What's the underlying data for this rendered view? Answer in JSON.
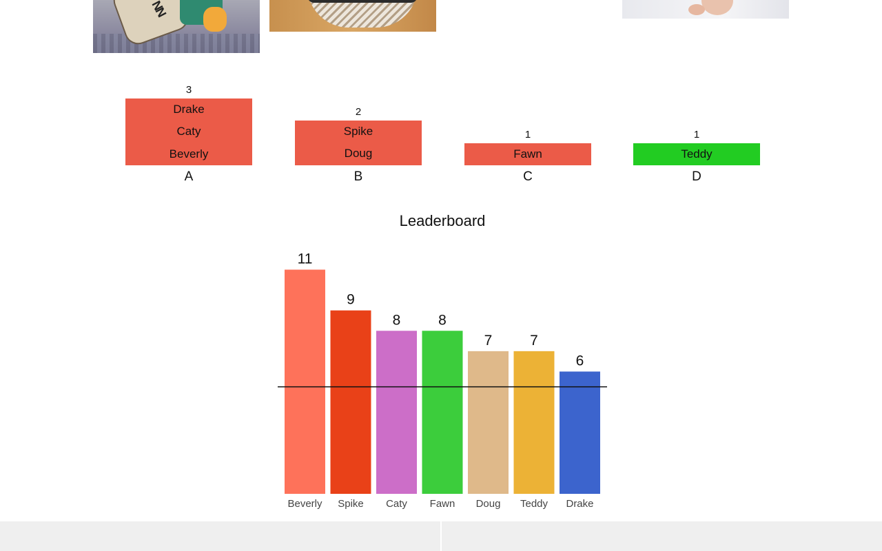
{
  "images": [
    {
      "name": "cartoon-image",
      "caption_fragment": "NN"
    },
    {
      "name": "basket-image"
    },
    {
      "name": "baby-image"
    }
  ],
  "groups": [
    {
      "letter": "A",
      "count": "3",
      "members": [
        "Drake",
        "Caty",
        "Beverly"
      ],
      "color": "#eb5b48"
    },
    {
      "letter": "B",
      "count": "2",
      "members": [
        "Spike",
        "Doug"
      ],
      "color": "#eb5b48"
    },
    {
      "letter": "C",
      "count": "1",
      "members": [
        "Fawn"
      ],
      "color": "#eb5b48"
    },
    {
      "letter": "D",
      "count": "1",
      "members": [
        "Teddy"
      ],
      "color": "#22cc22"
    }
  ],
  "leaderboard": {
    "title": "Leaderboard"
  },
  "chart_data": {
    "type": "bar",
    "title": "Leaderboard",
    "categories": [
      "Beverly",
      "Spike",
      "Caty",
      "Fawn",
      "Doug",
      "Teddy",
      "Drake"
    ],
    "values": [
      11,
      9,
      8,
      8,
      7,
      7,
      6
    ],
    "colors": [
      "#fe725a",
      "#e94118",
      "#cc6ec8",
      "#3ccd3c",
      "#dfb98a",
      "#ecb236",
      "#3c64cd"
    ],
    "reference_line": 5.25,
    "ylim": [
      0,
      11
    ],
    "xlabel": "",
    "ylabel": "",
    "grid": false,
    "data_labels": true
  }
}
